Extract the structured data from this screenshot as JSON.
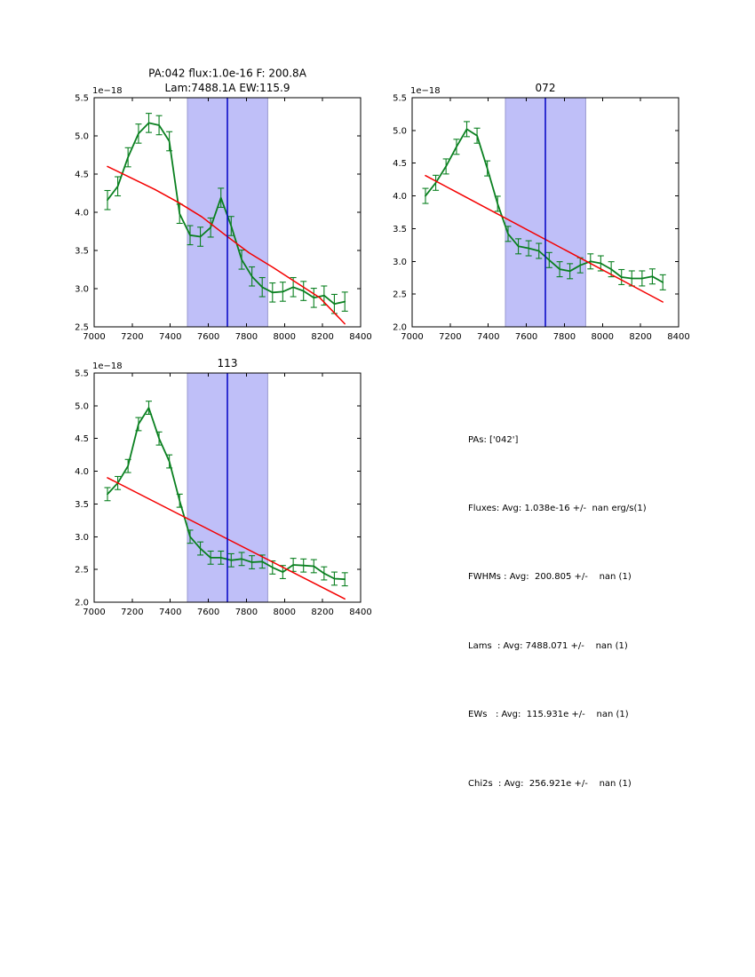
{
  "figure": {
    "background": "#ffffff",
    "axis_color": "#000000"
  },
  "stats_panel": {
    "lines": [
      "PAs: ['042']",
      "Fluxes: Avg: 1.038e-16 +/-  nan erg/s(1)",
      "FWHMs : Avg:  200.805 +/-    nan (1)",
      "Lams  : Avg: 7488.071 +/-    nan (1)",
      "EWs   : Avg:  115.931e +/-    nan (1)",
      "Chi2s  : Avg:  256.921e +/-    nan (1)"
    ]
  },
  "chart_data": [
    {
      "type": "line",
      "title_lines": [
        "PA:042 flux:1.0e-16 F: 200.8A",
        "Lam:7488.1A EW:115.9"
      ],
      "offset_text": "1e−18",
      "xlim": [
        7000,
        8400
      ],
      "ylim": [
        2.5,
        5.5
      ],
      "xticks": [
        7000,
        7200,
        7400,
        7600,
        7800,
        8000,
        8200,
        8400
      ],
      "xtick_labels": [
        "7000",
        "7200",
        "7400",
        "7600",
        "7800",
        "8000",
        "8200",
        "8400"
      ],
      "yticks": [
        2.5,
        3.0,
        3.5,
        4.0,
        4.5,
        5.0,
        5.5
      ],
      "ytick_labels": [
        "2.5",
        "3.0",
        "3.5",
        "4.0",
        "4.5",
        "5.0",
        "5.5"
      ],
      "grid": false,
      "band": {
        "x0": 7490,
        "x1": 7912,
        "fill": "#bfbff8",
        "edge": "#9a9ad0"
      },
      "vline": {
        "x": 7700,
        "color": "#0000c4"
      },
      "series": [
        {
          "name": "spectrum",
          "color": "#0a8020",
          "yerr": 0.125,
          "x": [
            7070,
            7124,
            7178,
            7233,
            7287,
            7341,
            7395,
            7449,
            7504,
            7558,
            7612,
            7666,
            7720,
            7775,
            7829,
            7883,
            7937,
            7991,
            8046,
            8100,
            8154,
            8208,
            8262,
            8317
          ],
          "y": [
            4.16,
            4.34,
            4.72,
            5.03,
            5.17,
            5.14,
            4.93,
            3.98,
            3.7,
            3.68,
            3.8,
            4.19,
            3.82,
            3.38,
            3.16,
            3.02,
            2.95,
            2.96,
            3.02,
            2.97,
            2.88,
            2.91,
            2.8,
            2.83
          ]
        },
        {
          "name": "continuum-fit",
          "color": "#f40000",
          "yerr": 0,
          "x": [
            7070,
            7194,
            7318,
            7442,
            7566,
            7690,
            7814,
            7938,
            8062,
            8186,
            8317
          ],
          "y": [
            4.6,
            4.45,
            4.3,
            4.13,
            3.94,
            3.7,
            3.47,
            3.28,
            3.08,
            2.88,
            2.54
          ]
        }
      ]
    },
    {
      "type": "line",
      "title_lines": [
        "072"
      ],
      "offset_text": "1e−18",
      "xlim": [
        7000,
        8400
      ],
      "ylim": [
        2.0,
        5.5
      ],
      "xticks": [
        7000,
        7200,
        7400,
        7600,
        7800,
        8000,
        8200,
        8400
      ],
      "xtick_labels": [
        "7000",
        "7200",
        "7400",
        "7600",
        "7800",
        "8000",
        "8200",
        "8400"
      ],
      "yticks": [
        2.0,
        2.5,
        3.0,
        3.5,
        4.0,
        4.5,
        5.0,
        5.5
      ],
      "ytick_labels": [
        "2.0",
        "2.5",
        "3.0",
        "3.5",
        "4.0",
        "4.5",
        "5.0",
        "5.5"
      ],
      "grid": false,
      "band": {
        "x0": 7490,
        "x1": 7912,
        "fill": "#bfbff8",
        "edge": "#9a9ad0"
      },
      "vline": {
        "x": 7700,
        "color": "#0000c4"
      },
      "series": [
        {
          "name": "spectrum",
          "color": "#0a8020",
          "yerr": 0.115,
          "x": [
            7070,
            7124,
            7178,
            7233,
            7287,
            7341,
            7395,
            7449,
            7504,
            7558,
            7612,
            7666,
            7720,
            7775,
            7829,
            7883,
            7937,
            7991,
            8046,
            8100,
            8154,
            8208,
            8262,
            8317
          ],
          "y": [
            4.0,
            4.2,
            4.45,
            4.75,
            5.02,
            4.92,
            4.42,
            3.88,
            3.42,
            3.23,
            3.2,
            3.16,
            3.02,
            2.88,
            2.85,
            2.94,
            3.0,
            2.97,
            2.88,
            2.76,
            2.74,
            2.74,
            2.77,
            2.68
          ]
        },
        {
          "name": "continuum-fit",
          "color": "#f40000",
          "yerr": 0,
          "x": [
            7070,
            8317
          ],
          "y": [
            4.31,
            2.38
          ]
        }
      ]
    },
    {
      "type": "line",
      "title_lines": [
        "113"
      ],
      "offset_text": "1e−18",
      "xlim": [
        7000,
        8400
      ],
      "ylim": [
        2.0,
        5.5
      ],
      "xticks": [
        7000,
        7200,
        7400,
        7600,
        7800,
        8000,
        8200,
        8400
      ],
      "xtick_labels": [
        "7000",
        "7200",
        "7400",
        "7600",
        "7800",
        "8000",
        "8200",
        "8400"
      ],
      "yticks": [
        2.0,
        2.5,
        3.0,
        3.5,
        4.0,
        4.5,
        5.0,
        5.5
      ],
      "ytick_labels": [
        "2.0",
        "2.5",
        "3.0",
        "3.5",
        "4.0",
        "4.5",
        "5.0",
        "5.5"
      ],
      "grid": false,
      "band": {
        "x0": 7490,
        "x1": 7912,
        "fill": "#bfbff8",
        "edge": "#9a9ad0"
      },
      "vline": {
        "x": 7700,
        "color": "#0000c4"
      },
      "series": [
        {
          "name": "spectrum",
          "color": "#0a8020",
          "yerr": 0.1,
          "x": [
            7070,
            7124,
            7178,
            7233,
            7287,
            7341,
            7395,
            7449,
            7504,
            7558,
            7612,
            7666,
            7720,
            7775,
            7829,
            7883,
            7937,
            7991,
            8046,
            8100,
            8154,
            8208,
            8262,
            8317
          ],
          "y": [
            3.65,
            3.82,
            4.08,
            4.72,
            4.97,
            4.5,
            4.15,
            3.55,
            3.0,
            2.82,
            2.68,
            2.68,
            2.64,
            2.66,
            2.61,
            2.62,
            2.53,
            2.46,
            2.57,
            2.56,
            2.55,
            2.44,
            2.36,
            2.35
          ]
        },
        {
          "name": "continuum-fit",
          "color": "#f40000",
          "yerr": 0,
          "x": [
            7070,
            8317
          ],
          "y": [
            3.9,
            2.05
          ]
        }
      ]
    }
  ]
}
